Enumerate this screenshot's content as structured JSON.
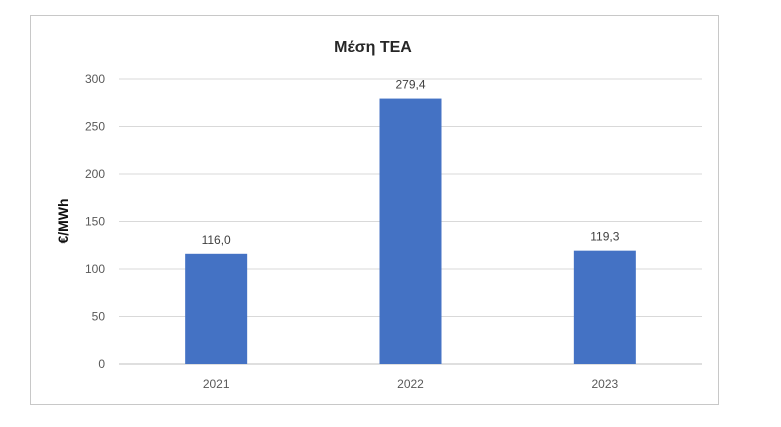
{
  "chart_data": {
    "type": "bar",
    "title": "Μέση ΤΕΑ",
    "xlabel": "",
    "ylabel": "€/MWh",
    "categories": [
      "2021",
      "2022",
      "2023"
    ],
    "values": [
      116.0,
      279.4,
      119.3
    ],
    "data_labels": [
      "116,0",
      "279,4",
      "119,3"
    ],
    "yticks": [
      "0",
      "50",
      "100",
      "150",
      "200",
      "250",
      "300"
    ],
    "ylim": [
      0,
      300
    ],
    "grid": true,
    "legend": "none",
    "bar_color": "#4472C4"
  }
}
